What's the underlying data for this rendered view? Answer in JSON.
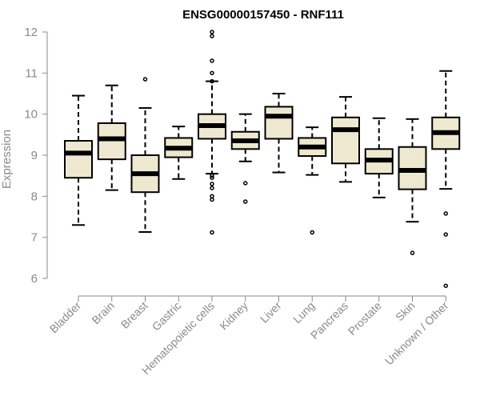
{
  "chart_data": {
    "type": "boxplot",
    "title": "ENSG00000157450 - RNF111",
    "ylabel": "Expression",
    "ylim": [
      5.8,
      12.1
    ],
    "yticks": [
      6,
      7,
      8,
      9,
      10,
      11,
      12
    ],
    "box_color": "#efe8d0",
    "categories": [
      "Bladder",
      "Brain",
      "Breast",
      "Gastric",
      "Hematopoietic cells",
      "Kidney",
      "Liver",
      "Lung",
      "Pancreas",
      "Prostate",
      "Skin",
      "Unknown / Other"
    ],
    "boxes": [
      {
        "whisker_low": 7.3,
        "q1": 8.45,
        "median": 9.05,
        "q3": 9.35,
        "whisker_high": 10.45,
        "outliers": []
      },
      {
        "whisker_low": 8.15,
        "q1": 8.9,
        "median": 9.4,
        "q3": 9.78,
        "whisker_high": 10.7,
        "outliers": []
      },
      {
        "whisker_low": 7.13,
        "q1": 8.1,
        "median": 8.55,
        "q3": 9.0,
        "whisker_high": 10.15,
        "outliers": [
          10.85
        ]
      },
      {
        "whisker_low": 8.42,
        "q1": 8.95,
        "median": 9.17,
        "q3": 9.42,
        "whisker_high": 9.7,
        "outliers": []
      },
      {
        "whisker_low": 8.55,
        "q1": 9.4,
        "median": 9.72,
        "q3": 10.0,
        "whisker_high": 10.8,
        "outliers": [
          12.0,
          11.9,
          11.3,
          11.0,
          10.8,
          8.5,
          8.45,
          8.3,
          8.2,
          8.0,
          7.92,
          7.12
        ]
      },
      {
        "whisker_low": 8.85,
        "q1": 9.15,
        "median": 9.35,
        "q3": 9.57,
        "whisker_high": 10.0,
        "outliers": [
          8.32,
          7.87
        ]
      },
      {
        "whisker_low": 8.58,
        "q1": 9.4,
        "median": 9.95,
        "q3": 10.18,
        "whisker_high": 10.5,
        "outliers": []
      },
      {
        "whisker_low": 8.52,
        "q1": 8.98,
        "median": 9.2,
        "q3": 9.42,
        "whisker_high": 9.68,
        "outliers": [
          7.12
        ]
      },
      {
        "whisker_low": 8.35,
        "q1": 8.8,
        "median": 9.62,
        "q3": 9.92,
        "whisker_high": 10.42,
        "outliers": []
      },
      {
        "whisker_low": 7.97,
        "q1": 8.55,
        "median": 8.88,
        "q3": 9.15,
        "whisker_high": 9.9,
        "outliers": []
      },
      {
        "whisker_low": 7.38,
        "q1": 8.17,
        "median": 8.63,
        "q3": 9.2,
        "whisker_high": 9.88,
        "outliers": [
          6.62
        ]
      },
      {
        "whisker_low": 8.18,
        "q1": 9.15,
        "median": 9.55,
        "q3": 9.92,
        "whisker_high": 11.05,
        "outliers": [
          7.58,
          7.07,
          5.82
        ]
      }
    ]
  }
}
